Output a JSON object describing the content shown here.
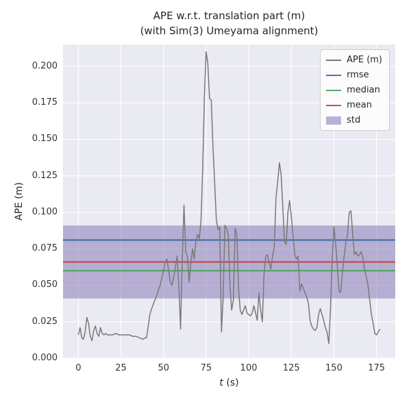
{
  "figure": {
    "title_line1": "APE w.r.t. translation part (m)",
    "title_line2": "(with Sim(3) Umeyama alignment)",
    "ylabel": "APE (m)",
    "xlabel_var": "t",
    "xlabel_unit": " (s)"
  },
  "legend": {
    "entries": [
      {
        "label": "APE (m)",
        "color": "#787878",
        "kind": "line"
      },
      {
        "label": "rmse",
        "color": "#4C72B0",
        "kind": "line"
      },
      {
        "label": "median",
        "color": "#55A868",
        "kind": "line"
      },
      {
        "label": "mean",
        "color": "#C44E52",
        "kind": "line"
      },
      {
        "label": "std",
        "color": "#8172B2",
        "kind": "patch"
      }
    ]
  },
  "chart_data": {
    "type": "line",
    "title": "APE w.r.t. translation part (m)\n(with Sim(3) Umeyama alignment)",
    "xlabel": "t (s)",
    "ylabel": "APE (m)",
    "xlim": [
      -9,
      186
    ],
    "ylim": [
      0,
      0.215
    ],
    "x_ticks": [
      0,
      25,
      50,
      75,
      100,
      125,
      150,
      175
    ],
    "x_tick_labels": [
      "0",
      "25",
      "50",
      "75",
      "100",
      "125",
      "150",
      "175"
    ],
    "y_ticks": [
      0,
      0.025,
      0.05,
      0.075,
      0.1,
      0.125,
      0.15,
      0.175,
      0.2
    ],
    "y_tick_labels": [
      "0.000",
      "0.025",
      "0.050",
      "0.075",
      "0.100",
      "0.125",
      "0.150",
      "0.175",
      "0.200"
    ],
    "grid": true,
    "legend_position": "upper right",
    "colors": {
      "background": "#EAEAF2",
      "grid": "#FFFFFF",
      "ape": "#787878",
      "rmse": "#4C72B0",
      "median": "#55A868",
      "mean": "#C44E52",
      "std": "#8172B2"
    },
    "stats": {
      "rmse": 0.081,
      "mean": 0.066,
      "median": 0.06,
      "std_band": [
        0.041,
        0.091
      ]
    },
    "series": [
      {
        "name": "APE (m)",
        "points": [
          [
            0,
            0.016
          ],
          [
            1,
            0.021
          ],
          [
            2,
            0.014
          ],
          [
            3,
            0.013
          ],
          [
            4,
            0.018
          ],
          [
            5,
            0.028
          ],
          [
            6,
            0.024
          ],
          [
            7,
            0.015
          ],
          [
            8,
            0.012
          ],
          [
            9,
            0.019
          ],
          [
            10,
            0.022
          ],
          [
            11,
            0.017
          ],
          [
            12,
            0.015
          ],
          [
            13,
            0.021
          ],
          [
            14,
            0.017
          ],
          [
            15,
            0.016
          ],
          [
            16,
            0.017
          ],
          [
            17,
            0.016
          ],
          [
            18,
            0.016
          ],
          [
            20,
            0.016
          ],
          [
            22,
            0.017
          ],
          [
            24,
            0.016
          ],
          [
            26,
            0.016
          ],
          [
            28,
            0.016
          ],
          [
            30,
            0.016
          ],
          [
            32,
            0.015
          ],
          [
            34,
            0.015
          ],
          [
            36,
            0.014
          ],
          [
            38,
            0.013
          ],
          [
            39,
            0.014
          ],
          [
            40,
            0.014
          ],
          [
            41,
            0.022
          ],
          [
            42,
            0.03
          ],
          [
            43,
            0.034
          ],
          [
            44,
            0.037
          ],
          [
            45,
            0.04
          ],
          [
            46,
            0.043
          ],
          [
            47,
            0.047
          ],
          [
            48,
            0.05
          ],
          [
            49,
            0.055
          ],
          [
            50,
            0.06
          ],
          [
            51,
            0.066
          ],
          [
            52,
            0.068
          ],
          [
            53,
            0.06
          ],
          [
            54,
            0.052
          ],
          [
            55,
            0.05
          ],
          [
            56,
            0.056
          ],
          [
            57,
            0.063
          ],
          [
            58,
            0.07
          ],
          [
            59,
            0.05
          ],
          [
            60,
            0.02
          ],
          [
            61,
            0.068
          ],
          [
            62,
            0.105
          ],
          [
            63,
            0.073
          ],
          [
            64,
            0.07
          ],
          [
            65,
            0.052
          ],
          [
            66,
            0.065
          ],
          [
            67,
            0.075
          ],
          [
            68,
            0.068
          ],
          [
            69,
            0.08
          ],
          [
            70,
            0.085
          ],
          [
            71,
            0.082
          ],
          [
            72,
            0.095
          ],
          [
            73,
            0.13
          ],
          [
            74,
            0.18
          ],
          [
            75,
            0.21
          ],
          [
            76,
            0.202
          ],
          [
            77,
            0.178
          ],
          [
            78,
            0.177
          ],
          [
            79,
            0.145
          ],
          [
            80,
            0.12
          ],
          [
            81,
            0.095
          ],
          [
            82,
            0.088
          ],
          [
            83,
            0.09
          ],
          [
            84,
            0.018
          ],
          [
            85,
            0.042
          ],
          [
            86,
            0.091
          ],
          [
            87,
            0.089
          ],
          [
            88,
            0.084
          ],
          [
            89,
            0.05
          ],
          [
            90,
            0.033
          ],
          [
            91,
            0.04
          ],
          [
            92,
            0.089
          ],
          [
            93,
            0.085
          ],
          [
            94,
            0.048
          ],
          [
            95,
            0.033
          ],
          [
            96,
            0.03
          ],
          [
            97,
            0.033
          ],
          [
            98,
            0.036
          ],
          [
            99,
            0.031
          ],
          [
            100,
            0.03
          ],
          [
            101,
            0.029
          ],
          [
            102,
            0.031
          ],
          [
            103,
            0.036
          ],
          [
            104,
            0.031
          ],
          [
            105,
            0.026
          ],
          [
            106,
            0.045
          ],
          [
            107,
            0.033
          ],
          [
            108,
            0.025
          ],
          [
            109,
            0.058
          ],
          [
            110,
            0.07
          ],
          [
            111,
            0.071
          ],
          [
            112,
            0.066
          ],
          [
            113,
            0.061
          ],
          [
            114,
            0.07
          ],
          [
            115,
            0.076
          ],
          [
            116,
            0.11
          ],
          [
            117,
            0.121
          ],
          [
            118,
            0.134
          ],
          [
            119,
            0.126
          ],
          [
            120,
            0.104
          ],
          [
            121,
            0.08
          ],
          [
            122,
            0.078
          ],
          [
            123,
            0.1
          ],
          [
            124,
            0.108
          ],
          [
            125,
            0.097
          ],
          [
            126,
            0.084
          ],
          [
            127,
            0.071
          ],
          [
            128,
            0.068
          ],
          [
            129,
            0.07
          ],
          [
            130,
            0.046
          ],
          [
            131,
            0.051
          ],
          [
            132,
            0.048
          ],
          [
            133,
            0.045
          ],
          [
            134,
            0.042
          ],
          [
            135,
            0.038
          ],
          [
            136,
            0.026
          ],
          [
            137,
            0.022
          ],
          [
            138,
            0.02
          ],
          [
            139,
            0.019
          ],
          [
            140,
            0.021
          ],
          [
            141,
            0.03
          ],
          [
            142,
            0.034
          ],
          [
            143,
            0.03
          ],
          [
            144,
            0.026
          ],
          [
            145,
            0.021
          ],
          [
            146,
            0.018
          ],
          [
            147,
            0.01
          ],
          [
            148,
            0.034
          ],
          [
            149,
            0.068
          ],
          [
            150,
            0.09
          ],
          [
            151,
            0.079
          ],
          [
            152,
            0.064
          ],
          [
            153,
            0.046
          ],
          [
            154,
            0.045
          ],
          [
            155,
            0.059
          ],
          [
            156,
            0.07
          ],
          [
            157,
            0.079
          ],
          [
            158,
            0.085
          ],
          [
            159,
            0.1
          ],
          [
            160,
            0.101
          ],
          [
            161,
            0.086
          ],
          [
            162,
            0.071
          ],
          [
            163,
            0.073
          ],
          [
            164,
            0.07
          ],
          [
            165,
            0.071
          ],
          [
            166,
            0.073
          ],
          [
            167,
            0.069
          ],
          [
            168,
            0.061
          ],
          [
            169,
            0.056
          ],
          [
            170,
            0.05
          ],
          [
            171,
            0.04
          ],
          [
            172,
            0.03
          ],
          [
            173,
            0.024
          ],
          [
            174,
            0.017
          ],
          [
            175,
            0.016
          ],
          [
            176,
            0.018
          ],
          [
            177,
            0.02
          ]
        ]
      }
    ]
  }
}
